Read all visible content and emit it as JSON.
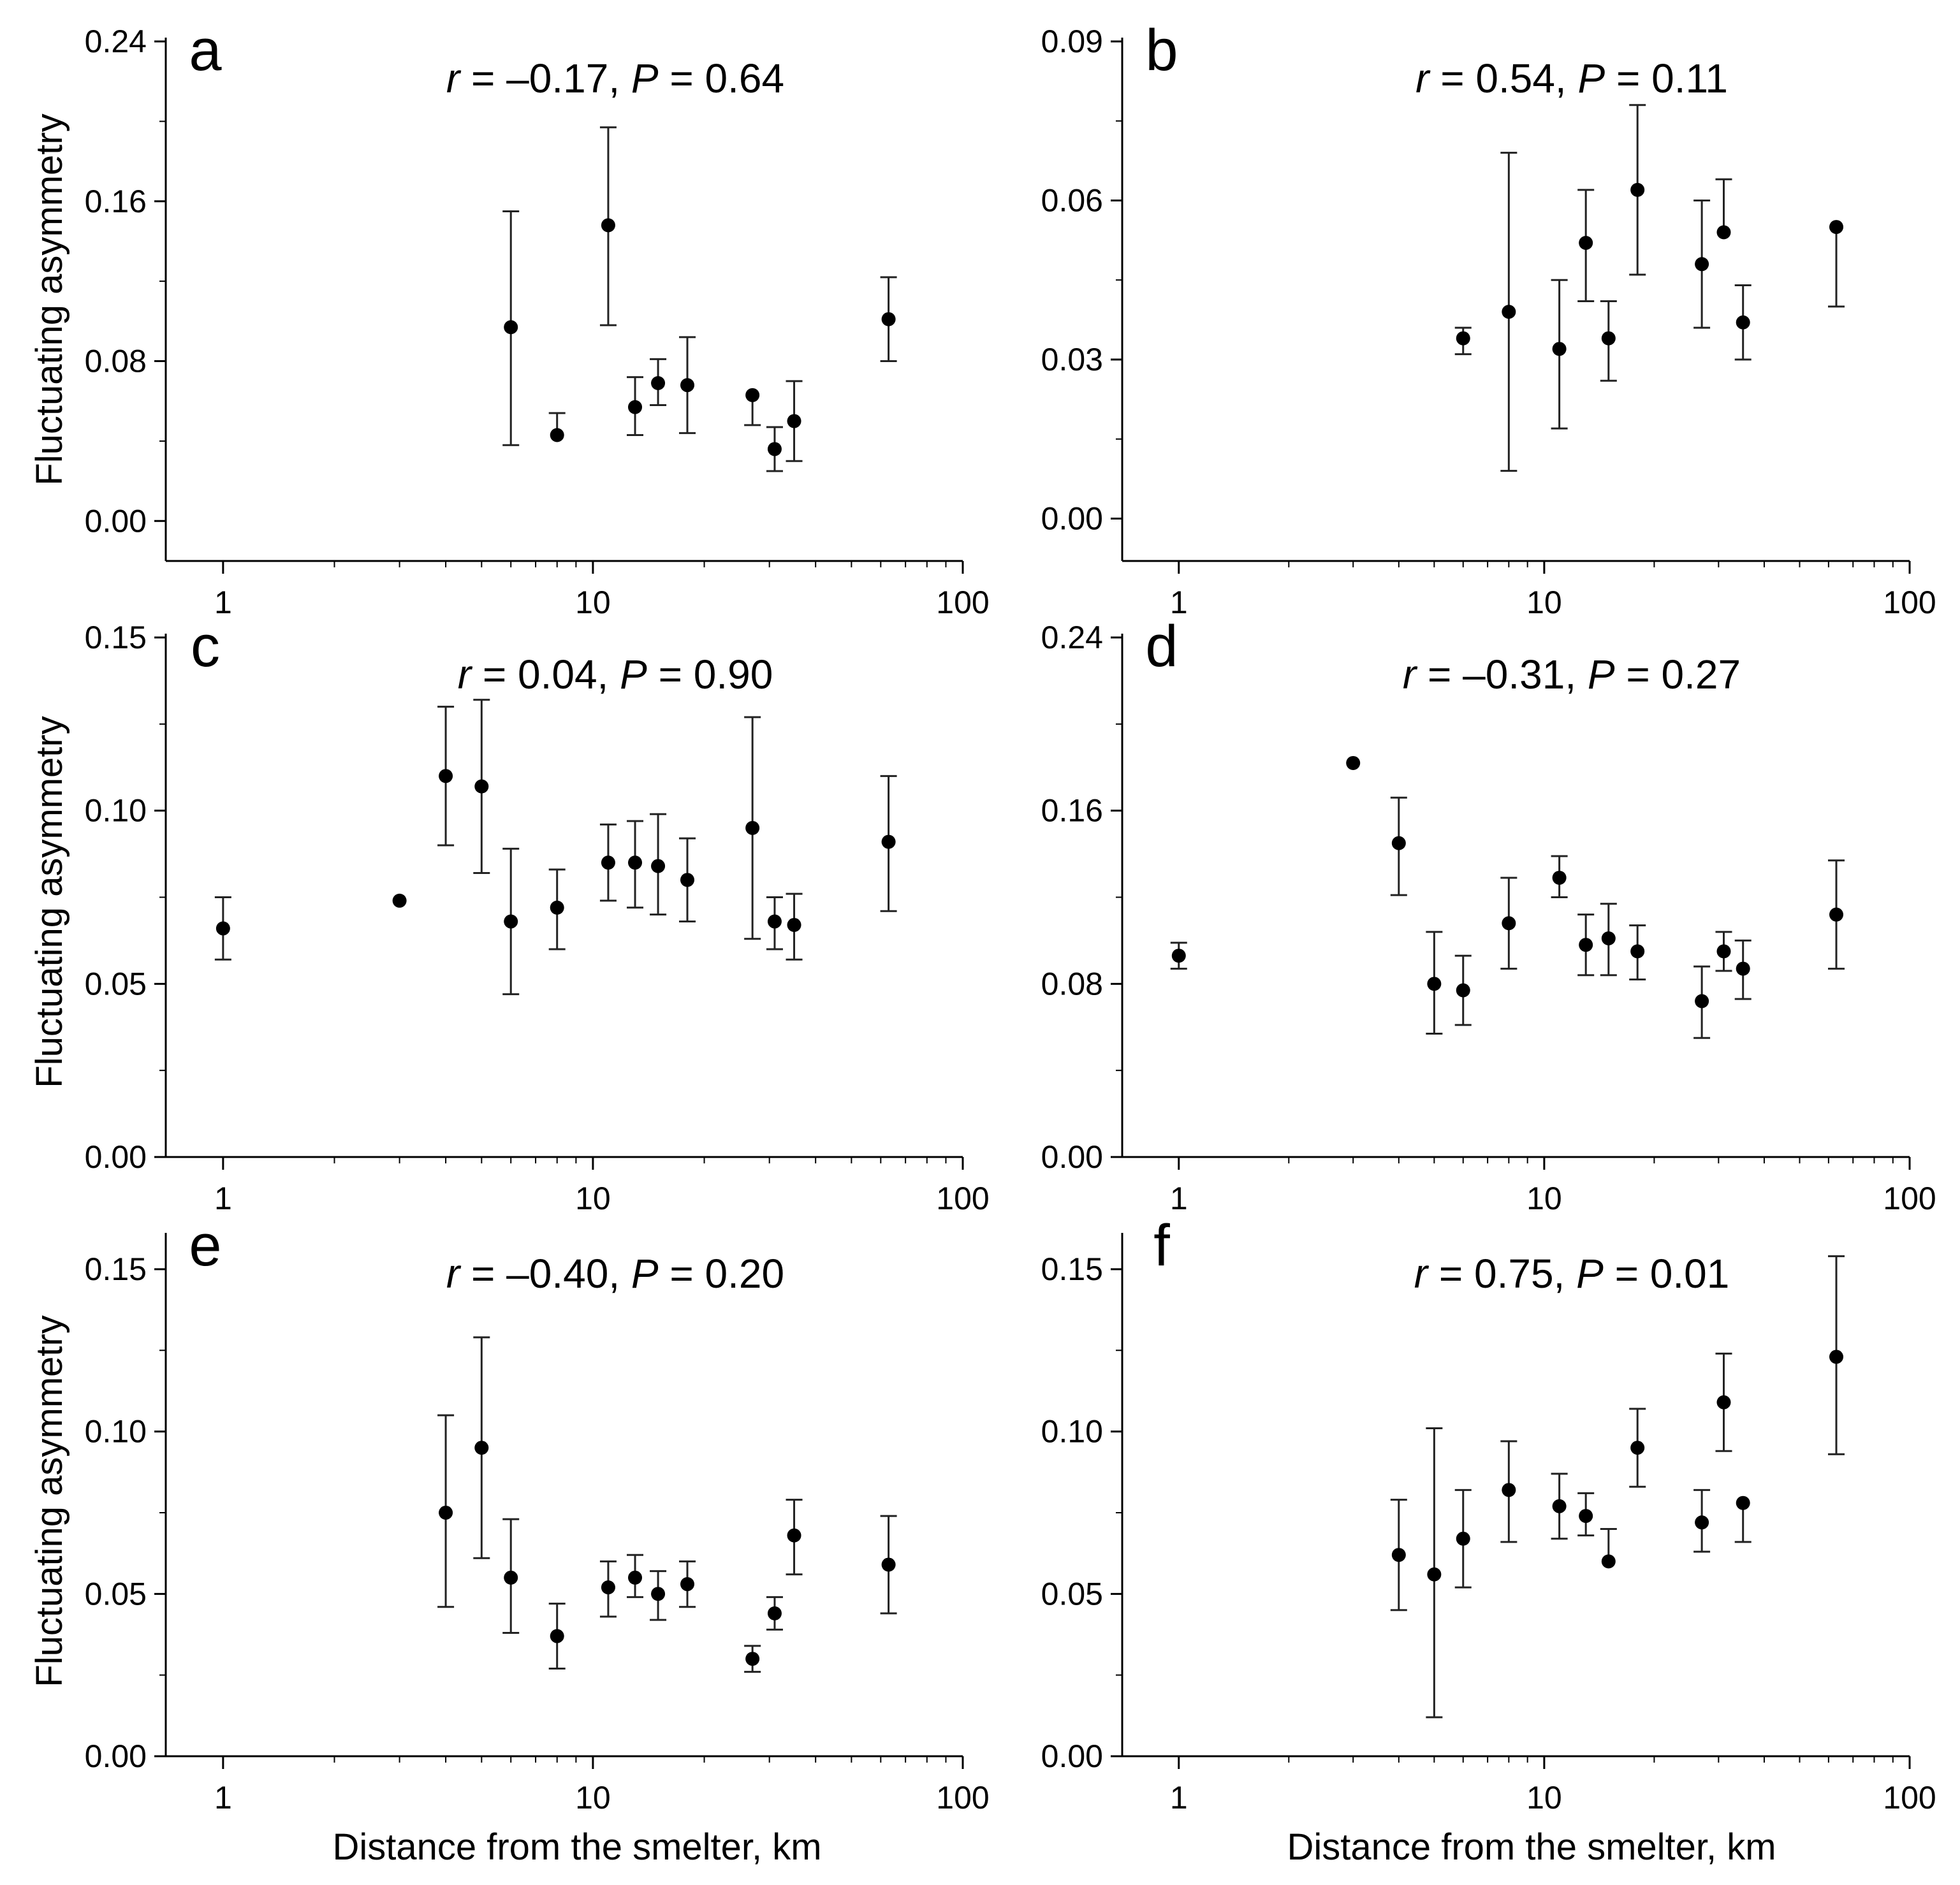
{
  "figure": {
    "ylabel": "Fluctuating asymmetry",
    "xlabel": "Distance from the smelter, km"
  },
  "chart_data": [
    {
      "type": "scatter",
      "panel": "a",
      "stat": {
        "r": "–0.17",
        "p": "0.64"
      },
      "x_scale": "log",
      "xlim": [
        0.7,
        100
      ],
      "xticks": [
        "1",
        "10",
        "100"
      ],
      "ylim": [
        -0.02,
        0.24
      ],
      "yticks": [
        "0.00",
        "0.08",
        "0.16",
        "0.24"
      ],
      "xlabel": "",
      "ylabel": "Fluctuating asymmetry",
      "points": [
        {
          "x": 6,
          "y": 0.097,
          "lo": 0.038,
          "hi": 0.155
        },
        {
          "x": 8,
          "y": 0.043,
          "hi": 0.054
        },
        {
          "x": 11,
          "y": 0.148,
          "lo": 0.098,
          "hi": 0.197
        },
        {
          "x": 13,
          "y": 0.057,
          "lo": 0.043,
          "hi": 0.072
        },
        {
          "x": 15,
          "y": 0.069,
          "lo": 0.058,
          "hi": 0.081
        },
        {
          "x": 18,
          "y": 0.068,
          "lo": 0.044,
          "hi": 0.092
        },
        {
          "x": 27,
          "y": 0.063,
          "lo": 0.048
        },
        {
          "x": 31,
          "y": 0.036,
          "lo": 0.025,
          "hi": 0.047
        },
        {
          "x": 35,
          "y": 0.05,
          "lo": 0.03,
          "hi": 0.07
        },
        {
          "x": 63,
          "y": 0.101,
          "lo": 0.08,
          "hi": 0.122
        }
      ]
    },
    {
      "type": "scatter",
      "panel": "b",
      "stat": {
        "r": "0.54",
        "p": "0.11"
      },
      "x_scale": "log",
      "xlim": [
        0.7,
        100
      ],
      "xticks": [
        "1",
        "10",
        "100"
      ],
      "ylim": [
        -0.008,
        0.09
      ],
      "yticks": [
        "0.00",
        "0.03",
        "0.06",
        "0.09"
      ],
      "xlabel": "",
      "ylabel": "",
      "points": [
        {
          "x": 6,
          "y": 0.034,
          "lo": 0.031,
          "hi": 0.036
        },
        {
          "x": 8,
          "y": 0.039,
          "lo": 0.009,
          "hi": 0.069
        },
        {
          "x": 11,
          "y": 0.032,
          "lo": 0.017,
          "hi": 0.045
        },
        {
          "x": 13,
          "y": 0.052,
          "lo": 0.041,
          "hi": 0.062
        },
        {
          "x": 15,
          "y": 0.034,
          "lo": 0.026,
          "hi": 0.041
        },
        {
          "x": 18,
          "y": 0.062,
          "lo": 0.046,
          "hi": 0.078
        },
        {
          "x": 27,
          "y": 0.048,
          "lo": 0.036,
          "hi": 0.06
        },
        {
          "x": 31,
          "y": 0.054,
          "hi": 0.064
        },
        {
          "x": 35,
          "y": 0.037,
          "lo": 0.03,
          "hi": 0.044
        },
        {
          "x": 63,
          "y": 0.055,
          "lo": 0.04
        }
      ]
    },
    {
      "type": "scatter",
      "panel": "c",
      "stat": {
        "r": "0.04",
        "p": "0.90"
      },
      "x_scale": "log",
      "xlim": [
        0.7,
        100
      ],
      "xticks": [
        "1",
        "10",
        "100"
      ],
      "ylim": [
        0,
        0.15
      ],
      "yticks": [
        "0.00",
        "0.05",
        "0.10",
        "0.15"
      ],
      "xlabel": "",
      "ylabel": "Fluctuating asymmetry",
      "points": [
        {
          "x": 1,
          "y": 0.066,
          "lo": 0.057,
          "hi": 0.075
        },
        {
          "x": 3,
          "y": 0.074
        },
        {
          "x": 4,
          "y": 0.11,
          "lo": 0.09,
          "hi": 0.13
        },
        {
          "x": 5,
          "y": 0.107,
          "lo": 0.082,
          "hi": 0.132
        },
        {
          "x": 6,
          "y": 0.068,
          "lo": 0.047,
          "hi": 0.089
        },
        {
          "x": 8,
          "y": 0.072,
          "lo": 0.06,
          "hi": 0.083
        },
        {
          "x": 11,
          "y": 0.085,
          "lo": 0.074,
          "hi": 0.096
        },
        {
          "x": 13,
          "y": 0.085,
          "lo": 0.072,
          "hi": 0.097
        },
        {
          "x": 15,
          "y": 0.084,
          "lo": 0.07,
          "hi": 0.099
        },
        {
          "x": 18,
          "y": 0.08,
          "lo": 0.068,
          "hi": 0.092
        },
        {
          "x": 27,
          "y": 0.095,
          "lo": 0.063,
          "hi": 0.127
        },
        {
          "x": 31,
          "y": 0.068,
          "lo": 0.06,
          "hi": 0.075
        },
        {
          "x": 35,
          "y": 0.067,
          "lo": 0.057,
          "hi": 0.076
        },
        {
          "x": 63,
          "y": 0.091,
          "lo": 0.071,
          "hi": 0.11
        }
      ]
    },
    {
      "type": "scatter",
      "panel": "d",
      "stat": {
        "r": "–0.31",
        "p": "0.27"
      },
      "x_scale": "log",
      "xlim": [
        0.7,
        100
      ],
      "xticks": [
        "1",
        "10",
        "100"
      ],
      "ylim": [
        0,
        0.24
      ],
      "yticks": [
        "0.00",
        "0.08",
        "0.16",
        "0.24"
      ],
      "xlabel": "",
      "ylabel": "",
      "points": [
        {
          "x": 1,
          "y": 0.093,
          "lo": 0.087,
          "hi": 0.099
        },
        {
          "x": 3,
          "y": 0.182
        },
        {
          "x": 4,
          "y": 0.145,
          "lo": 0.121,
          "hi": 0.166
        },
        {
          "x": 5,
          "y": 0.08,
          "lo": 0.057,
          "hi": 0.104
        },
        {
          "x": 6,
          "y": 0.077,
          "lo": 0.061,
          "hi": 0.093
        },
        {
          "x": 8,
          "y": 0.108,
          "lo": 0.087,
          "hi": 0.129
        },
        {
          "x": 11,
          "y": 0.129,
          "lo": 0.12,
          "hi": 0.139
        },
        {
          "x": 13,
          "y": 0.098,
          "lo": 0.084,
          "hi": 0.112
        },
        {
          "x": 15,
          "y": 0.101,
          "lo": 0.084,
          "hi": 0.117
        },
        {
          "x": 18,
          "y": 0.095,
          "lo": 0.082,
          "hi": 0.107
        },
        {
          "x": 27,
          "y": 0.072,
          "lo": 0.055,
          "hi": 0.088
        },
        {
          "x": 31,
          "y": 0.095,
          "lo": 0.086,
          "hi": 0.104
        },
        {
          "x": 35,
          "y": 0.087,
          "lo": 0.073,
          "hi": 0.1
        },
        {
          "x": 63,
          "y": 0.112,
          "lo": 0.087,
          "hi": 0.137
        }
      ]
    },
    {
      "type": "scatter",
      "panel": "e",
      "stat": {
        "r": "–0.40",
        "p": "0.20"
      },
      "x_scale": "log",
      "xlim": [
        0.7,
        100
      ],
      "xticks": [
        "1",
        "10",
        "100"
      ],
      "ylim": [
        0,
        0.16
      ],
      "yticks": [
        "0.00",
        "0.05",
        "0.10",
        "0.15"
      ],
      "xlabel": "Distance from the smelter, km",
      "ylabel": "Fluctuating asymmetry",
      "points": [
        {
          "x": 4,
          "y": 0.075,
          "lo": 0.046,
          "hi": 0.105
        },
        {
          "x": 5,
          "y": 0.095,
          "lo": 0.061,
          "hi": 0.129
        },
        {
          "x": 6,
          "y": 0.055,
          "lo": 0.038,
          "hi": 0.073
        },
        {
          "x": 8,
          "y": 0.037,
          "lo": 0.027,
          "hi": 0.047
        },
        {
          "x": 11,
          "y": 0.052,
          "lo": 0.043,
          "hi": 0.06
        },
        {
          "x": 13,
          "y": 0.055,
          "lo": 0.049,
          "hi": 0.062
        },
        {
          "x": 15,
          "y": 0.05,
          "lo": 0.042,
          "hi": 0.057
        },
        {
          "x": 18,
          "y": 0.053,
          "lo": 0.046,
          "hi": 0.06
        },
        {
          "x": 27,
          "y": 0.03,
          "lo": 0.026,
          "hi": 0.034
        },
        {
          "x": 31,
          "y": 0.044,
          "lo": 0.039,
          "hi": 0.049
        },
        {
          "x": 35,
          "y": 0.068,
          "lo": 0.056,
          "hi": 0.079
        },
        {
          "x": 63,
          "y": 0.059,
          "lo": 0.044,
          "hi": 0.074
        }
      ]
    },
    {
      "type": "scatter",
      "panel": "f",
      "stat": {
        "r": "0.75",
        "p": "0.01"
      },
      "x_scale": "log",
      "xlim": [
        0.7,
        100
      ],
      "xticks": [
        "1",
        "10",
        "100"
      ],
      "ylim": [
        0,
        0.16
      ],
      "yticks": [
        "0.00",
        "0.05",
        "0.10",
        "0.15"
      ],
      "xlabel": "Distance from the smelter, km",
      "ylabel": "",
      "points": [
        {
          "x": 4,
          "y": 0.062,
          "lo": 0.045,
          "hi": 0.079
        },
        {
          "x": 5,
          "y": 0.056,
          "lo": 0.012,
          "hi": 0.101
        },
        {
          "x": 6,
          "y": 0.067,
          "lo": 0.052,
          "hi": 0.082
        },
        {
          "x": 8,
          "y": 0.082,
          "lo": 0.066,
          "hi": 0.097
        },
        {
          "x": 11,
          "y": 0.077,
          "lo": 0.067,
          "hi": 0.087
        },
        {
          "x": 13,
          "y": 0.074,
          "lo": 0.068,
          "hi": 0.081
        },
        {
          "x": 15,
          "y": 0.06,
          "hi": 0.07
        },
        {
          "x": 18,
          "y": 0.095,
          "lo": 0.083,
          "hi": 0.107
        },
        {
          "x": 27,
          "y": 0.072,
          "lo": 0.063,
          "hi": 0.082
        },
        {
          "x": 31,
          "y": 0.109,
          "lo": 0.094,
          "hi": 0.124
        },
        {
          "x": 35,
          "y": 0.078,
          "lo": 0.066
        },
        {
          "x": 63,
          "y": 0.123,
          "lo": 0.093,
          "hi": 0.154
        }
      ]
    }
  ]
}
